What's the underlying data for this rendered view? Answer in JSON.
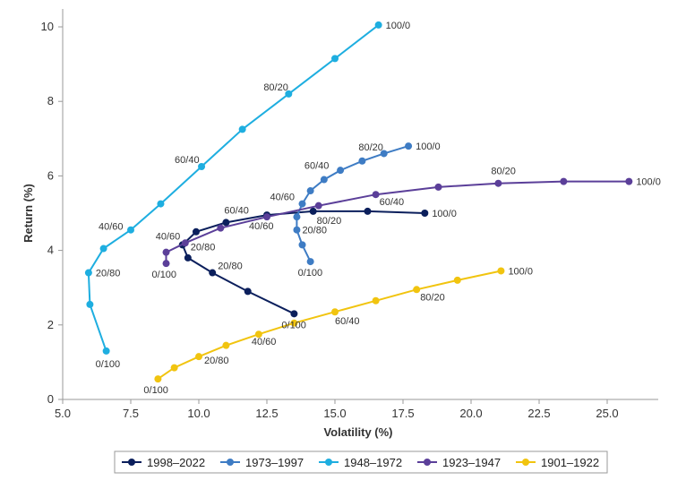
{
  "chart_data": {
    "type": "line",
    "title": "",
    "xlabel": "Volatility (%)",
    "ylabel": "Return (%)",
    "xlim": [
      5.0,
      27.5
    ],
    "ylim": [
      0,
      10.5
    ],
    "x_ticks": [
      "5.0",
      "7.5",
      "10.0",
      "12.5",
      "15.0",
      "17.5",
      "20.0",
      "22.5",
      "25.0"
    ],
    "y_ticks": [
      "0",
      "2",
      "4",
      "6",
      "8",
      "10"
    ],
    "legend_position": "bottom-center",
    "series": [
      {
        "name": "1998–2022",
        "color": "#0b1f5c",
        "points": [
          [
            13.5,
            2.3
          ],
          [
            11.8,
            2.9
          ],
          [
            10.5,
            3.4
          ],
          [
            9.6,
            3.8
          ],
          [
            9.4,
            4.15
          ],
          [
            9.9,
            4.5
          ],
          [
            11.0,
            4.75
          ],
          [
            12.5,
            4.95
          ],
          [
            14.2,
            5.05
          ],
          [
            16.2,
            5.05
          ],
          [
            18.3,
            5.0
          ]
        ],
        "labels": [
          {
            "text": "0/100",
            "i": 0,
            "dx": -14,
            "dy": 16
          },
          {
            "text": "20/80",
            "i": 2,
            "dx": 6,
            "dy": -4
          },
          {
            "text": "40/60",
            "i": 4,
            "dx": -30,
            "dy": -6
          },
          {
            "text": "60/40",
            "i": 6,
            "dx": -2,
            "dy": -10
          },
          {
            "text": "80/20",
            "i": 8,
            "dx": 4,
            "dy": 14
          },
          {
            "text": "100/0",
            "i": 10,
            "dx": 8,
            "dy": 4
          }
        ]
      },
      {
        "name": "1973–1997",
        "color": "#3e7cc4",
        "points": [
          [
            14.1,
            3.7
          ],
          [
            13.8,
            4.15
          ],
          [
            13.6,
            4.55
          ],
          [
            13.6,
            4.9
          ],
          [
            13.8,
            5.25
          ],
          [
            14.1,
            5.6
          ],
          [
            14.6,
            5.9
          ],
          [
            15.2,
            6.15
          ],
          [
            16.0,
            6.4
          ],
          [
            16.8,
            6.6
          ],
          [
            17.7,
            6.8
          ]
        ],
        "labels": [
          {
            "text": "0/100",
            "i": 0,
            "dx": -14,
            "dy": 16
          },
          {
            "text": "20/80",
            "i": 2,
            "dx": 6,
            "dy": 4
          },
          {
            "text": "40/60",
            "i": 4,
            "dx": -36,
            "dy": -4
          },
          {
            "text": "60/40",
            "i": 6,
            "dx": -22,
            "dy": -12
          },
          {
            "text": "80/20",
            "i": 8,
            "dx": -4,
            "dy": -12
          },
          {
            "text": "100/0",
            "i": 10,
            "dx": 8,
            "dy": 4
          }
        ]
      },
      {
        "name": "1948–1972",
        "color": "#1eaee0",
        "points": [
          [
            6.6,
            1.3
          ],
          [
            6.0,
            2.55
          ],
          [
            5.95,
            3.4
          ],
          [
            6.5,
            4.05
          ],
          [
            7.5,
            4.55
          ],
          [
            8.6,
            5.25
          ],
          [
            10.1,
            6.25
          ],
          [
            11.6,
            7.25
          ],
          [
            13.3,
            8.2
          ],
          [
            15.0,
            9.15
          ],
          [
            16.6,
            10.05
          ]
        ],
        "labels": [
          {
            "text": "0/100",
            "i": 0,
            "dx": -12,
            "dy": 18
          },
          {
            "text": "20/80",
            "i": 2,
            "dx": 8,
            "dy": 4
          },
          {
            "text": "40/60",
            "i": 4,
            "dx": -36,
            "dy": 0
          },
          {
            "text": "60/40",
            "i": 6,
            "dx": -30,
            "dy": -4
          },
          {
            "text": "80/20",
            "i": 8,
            "dx": -28,
            "dy": -4
          },
          {
            "text": "100/0",
            "i": 10,
            "dx": 8,
            "dy": 4
          }
        ]
      },
      {
        "name": "1923–1947",
        "color": "#5b3f99",
        "points": [
          [
            8.8,
            3.65
          ],
          [
            8.8,
            3.95
          ],
          [
            9.5,
            4.2
          ],
          [
            10.8,
            4.6
          ],
          [
            12.5,
            4.9
          ],
          [
            14.4,
            5.2
          ],
          [
            16.5,
            5.5
          ],
          [
            18.8,
            5.7
          ],
          [
            21.0,
            5.8
          ],
          [
            23.4,
            5.85
          ],
          [
            25.8,
            5.85
          ]
        ],
        "labels": [
          {
            "text": "0/100",
            "i": 0,
            "dx": -16,
            "dy": 16
          },
          {
            "text": "20/80",
            "i": 2,
            "dx": 6,
            "dy": 8
          },
          {
            "text": "40/60",
            "i": 4,
            "dx": -20,
            "dy": 14
          },
          {
            "text": "60/40",
            "i": 6,
            "dx": 4,
            "dy": 12
          },
          {
            "text": "80/20",
            "i": 8,
            "dx": -8,
            "dy": -10
          },
          {
            "text": "100/0",
            "i": 10,
            "dx": 8,
            "dy": 4
          }
        ]
      },
      {
        "name": "1901–1922",
        "color": "#f1c40f",
        "points": [
          [
            8.5,
            0.55
          ],
          [
            9.1,
            0.85
          ],
          [
            10.0,
            1.15
          ],
          [
            11.0,
            1.45
          ],
          [
            12.2,
            1.75
          ],
          [
            13.5,
            2.05
          ],
          [
            15.0,
            2.35
          ],
          [
            16.5,
            2.65
          ],
          [
            18.0,
            2.95
          ],
          [
            19.5,
            3.2
          ],
          [
            21.1,
            3.45
          ]
        ],
        "labels": [
          {
            "text": "0/100",
            "i": 0,
            "dx": -16,
            "dy": 16
          },
          {
            "text": "20/80",
            "i": 2,
            "dx": 6,
            "dy": 8
          },
          {
            "text": "40/60",
            "i": 4,
            "dx": -8,
            "dy": 12
          },
          {
            "text": "60/40",
            "i": 6,
            "dx": 0,
            "dy": 14
          },
          {
            "text": "80/20",
            "i": 8,
            "dx": 4,
            "dy": 12
          },
          {
            "text": "100/0",
            "i": 10,
            "dx": 8,
            "dy": 4
          }
        ]
      }
    ]
  }
}
